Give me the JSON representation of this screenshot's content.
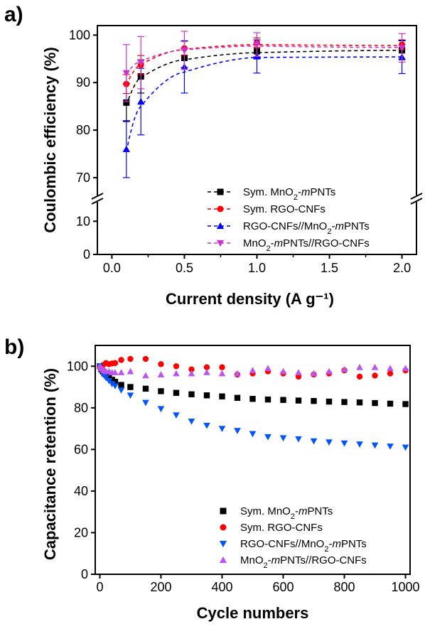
{
  "figure": {
    "panel_a_label": "a)",
    "panel_b_label": "b)"
  },
  "chart_data": [
    {
      "type": "scatter",
      "panel": "a)",
      "xlabel": "Current density (A g⁻¹)",
      "ylabel": "Coulombic efficiency (%)",
      "xlim": [
        -0.1,
        2.1
      ],
      "x_ticks": [
        0.0,
        0.5,
        1.0,
        1.5,
        2.0
      ],
      "x_tick_labels": [
        "0.0",
        "0.5",
        "1.0",
        "1.5",
        "2.0"
      ],
      "y_axis_break": true,
      "y_ticks": [
        0,
        10,
        70,
        80,
        90,
        100
      ],
      "y_tick_labels": [
        "0",
        "10",
        "70",
        "80",
        "90",
        "100"
      ],
      "ylim_lower_segment": [
        0,
        15
      ],
      "ylim_upper_segment": [
        67,
        102
      ],
      "legend_position": "bottom-right",
      "dashed_fit_lines": true,
      "series": [
        {
          "name": "Sym. MnO2-mPNTs",
          "legend_parts": [
            "Sym. MnO",
            "2",
            "-",
            "m",
            "PNTs"
          ],
          "marker": "square",
          "color": "#000000",
          "x": [
            0.1,
            0.2,
            0.5,
            1.0,
            2.0
          ],
          "y": [
            85.8,
            91.3,
            95.2,
            96.6,
            96.8
          ],
          "err": [
            4.0,
            3.5,
            2.0,
            1.5,
            2.0
          ],
          "fit": [
            85.2,
            91.0,
            94.8,
            96.3,
            96.8
          ]
        },
        {
          "name": "Sym. RGO-CNFs",
          "legend_parts": [
            "Sym. RGO-CNFs"
          ],
          "marker": "circle",
          "color": "#ff0000",
          "x": [
            0.1,
            0.2,
            0.5,
            1.0,
            2.0
          ],
          "y": [
            89.7,
            93.7,
            97.2,
            98.4,
            98.0
          ],
          "err": [
            2.0,
            2.0,
            1.5,
            1.0,
            1.0
          ],
          "fit": [
            89.5,
            93.8,
            97.0,
            98.0,
            97.8
          ]
        },
        {
          "name": "RGO-CNFs//MnO2-mPNTs",
          "legend_parts": [
            "RGO-CNFs//MnO",
            "2",
            "-",
            "m",
            "PNTs"
          ],
          "marker": "triangle-up",
          "color": "#0000ff",
          "x": [
            0.1,
            0.2,
            0.5,
            1.0,
            2.0
          ],
          "y": [
            76.0,
            86.0,
            93.3,
            95.5,
            95.4
          ],
          "err": [
            6.0,
            7.0,
            5.5,
            3.5,
            3.5
          ],
          "fit": [
            75.5,
            85.0,
            92.2,
            95.3,
            95.4
          ]
        },
        {
          "name": "MnO2-mPNTs//RGO-CNFs",
          "legend_parts": [
            "MnO",
            "2",
            "-",
            "m",
            "PNTs//RGO-CNFs"
          ],
          "marker": "triangle-down",
          "color": "#cc33cc",
          "x": [
            0.1,
            0.2,
            0.5,
            1.0,
            2.0
          ],
          "y": [
            92.0,
            94.2,
            96.8,
            98.0,
            97.3
          ],
          "err": [
            6.0,
            5.5,
            4.0,
            2.5,
            3.0
          ],
          "fit": [
            91.8,
            94.5,
            96.9,
            97.7,
            97.4
          ]
        }
      ]
    },
    {
      "type": "scatter",
      "panel": "b)",
      "xlabel": "Cycle numbers",
      "ylabel": "Capacitance retention (%)",
      "xlim": [
        -15,
        1015
      ],
      "ylim": [
        0,
        110
      ],
      "x_ticks": [
        0,
        200,
        400,
        600,
        800,
        1000
      ],
      "x_tick_labels": [
        "0",
        "200",
        "400",
        "600",
        "800",
        "1000"
      ],
      "y_ticks": [
        0,
        20,
        40,
        60,
        80,
        100
      ],
      "y_tick_labels": [
        "0",
        "20",
        "40",
        "60",
        "80",
        "100"
      ],
      "legend_position": "bottom-right",
      "series": [
        {
          "name": "Sym. MnO2-mPNTs",
          "legend_parts": [
            "Sym. MnO",
            "2",
            "-",
            "m",
            "PNTs"
          ],
          "marker": "square",
          "color": "#000000",
          "x": [
            0,
            5,
            10,
            15,
            20,
            30,
            40,
            50,
            70,
            100,
            150,
            200,
            250,
            300,
            350,
            400,
            450,
            500,
            550,
            600,
            650,
            700,
            750,
            800,
            850,
            900,
            950,
            1000
          ],
          "y": [
            100,
            98.5,
            97.5,
            96.5,
            96,
            94.5,
            93.5,
            92.5,
            91,
            90,
            89.2,
            88,
            87.2,
            86.5,
            86,
            85.5,
            84.8,
            84.3,
            84,
            83.8,
            83.5,
            83.3,
            83,
            82.8,
            82.6,
            82.3,
            82,
            81.8
          ]
        },
        {
          "name": "Sym. RGO-CNFs",
          "legend_parts": [
            "Sym. RGO-CNFs"
          ],
          "marker": "circle",
          "color": "#ff0000",
          "x": [
            0,
            10,
            20,
            30,
            40,
            50,
            70,
            100,
            150,
            200,
            250,
            300,
            350,
            400,
            450,
            500,
            550,
            600,
            650,
            700,
            750,
            800,
            850,
            900,
            950,
            1000
          ],
          "y": [
            100,
            100.5,
            101.5,
            101,
            101.3,
            101.5,
            103,
            103.5,
            103.5,
            101,
            100,
            98.5,
            99.5,
            99.5,
            96,
            96.5,
            97.5,
            96.5,
            95,
            96,
            96.5,
            98,
            95,
            95.5,
            96.5,
            98
          ]
        },
        {
          "name": "RGO-CNFs//MnO2-mPNTs",
          "legend_parts": [
            "RGO-CNFs//MnO",
            "2",
            "-",
            "m",
            "PNTs"
          ],
          "marker": "triangle-down",
          "color": "#0055ff",
          "x": [
            0,
            5,
            10,
            15,
            20,
            30,
            40,
            50,
            70,
            100,
            150,
            200,
            250,
            300,
            350,
            400,
            450,
            500,
            550,
            600,
            650,
            700,
            750,
            800,
            850,
            900,
            950,
            1000
          ],
          "y": [
            100,
            98,
            96.5,
            95.5,
            94.5,
            93,
            91.5,
            90.5,
            88.5,
            86,
            82.5,
            79.5,
            76.5,
            73.5,
            71.5,
            70,
            69,
            67.5,
            66,
            65.5,
            65,
            64,
            63.5,
            63,
            62.5,
            62,
            61.5,
            61
          ]
        },
        {
          "name": "MnO2-mPNTs//RGO-CNFs",
          "legend_parts": [
            "MnO",
            "2",
            "-",
            "m",
            "PNTs//RGO-CNFs"
          ],
          "marker": "triangle-up",
          "color": "#bb55ee",
          "x": [
            0,
            5,
            10,
            15,
            20,
            30,
            40,
            50,
            70,
            100,
            150,
            200,
            250,
            300,
            350,
            400,
            450,
            500,
            550,
            600,
            650,
            700,
            750,
            800,
            850,
            900,
            950,
            1000
          ],
          "y": [
            100,
            99,
            98.5,
            98,
            97.5,
            97.5,
            97,
            97,
            97,
            97.5,
            95.5,
            96,
            96.5,
            96.5,
            97,
            96.5,
            96.5,
            98,
            99,
            97.5,
            97,
            96.5,
            97.5,
            98.5,
            99.5,
            99.5,
            99,
            99
          ]
        }
      ]
    }
  ]
}
